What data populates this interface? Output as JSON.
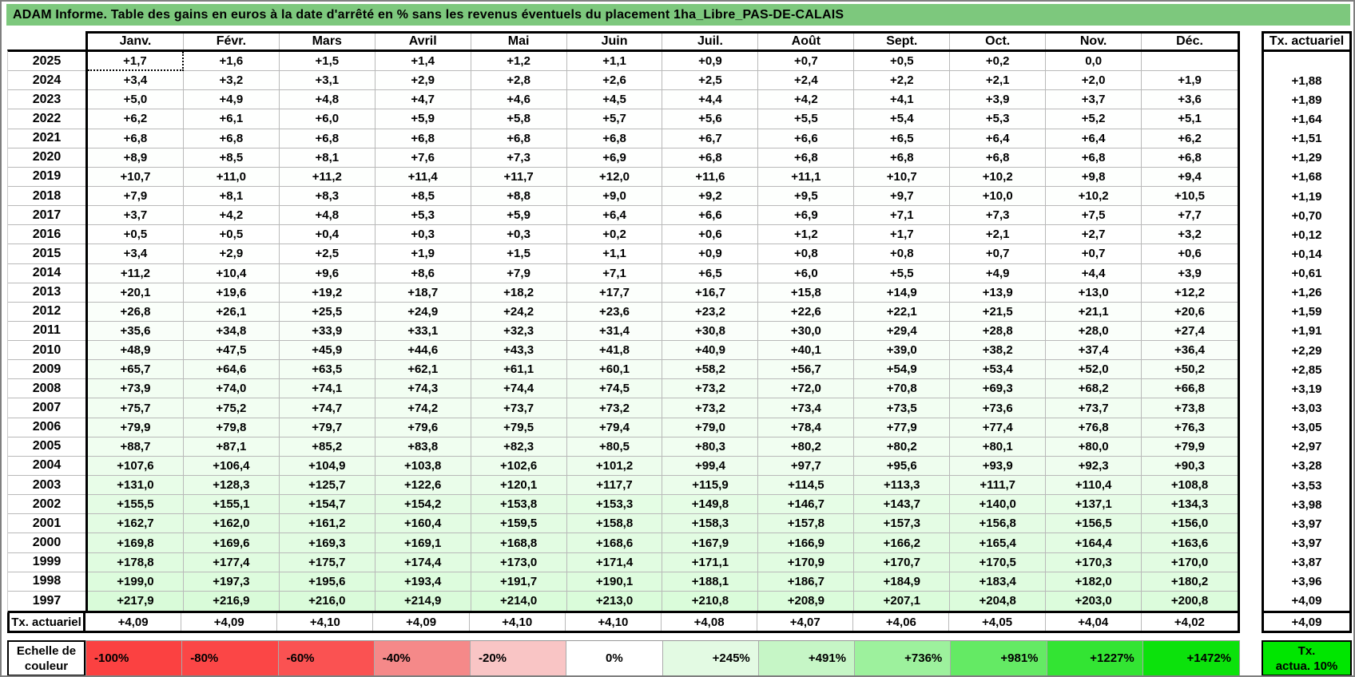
{
  "title": "ADAM Informe. Table des gains en euros à la date d'arrêté en % sans les revenus éventuels du placement 1ha_Libre_PAS-DE-CALAIS",
  "months": [
    "Janv.",
    "Févr.",
    "Mars",
    "Avril",
    "Mai",
    "Juin",
    "Juil.",
    "Août",
    "Sept.",
    "Oct.",
    "Nov.",
    "Déc."
  ],
  "right_column_header": "Tx. actuariel",
  "selection": {
    "row_index": 0,
    "col_index": 0
  },
  "colors": {
    "title_bg": "#7dc87d",
    "grid_line": "#b9b9b9",
    "gradient_max_green": "#00e800",
    "gradient_scale_max": 1472
  },
  "table": {
    "rows": [
      {
        "year": "2025",
        "values": [
          "+1,7",
          "+1,6",
          "+1,5",
          "+1,4",
          "+1,2",
          "+1,1",
          "+0,9",
          "+0,7",
          "+0,5",
          "+0,2",
          "0,0",
          ""
        ],
        "tx": ""
      },
      {
        "year": "2024",
        "values": [
          "+3,4",
          "+3,2",
          "+3,1",
          "+2,9",
          "+2,8",
          "+2,6",
          "+2,5",
          "+2,4",
          "+2,2",
          "+2,1",
          "+2,0",
          "+1,9"
        ],
        "tx": "+1,88"
      },
      {
        "year": "2023",
        "values": [
          "+5,0",
          "+4,9",
          "+4,8",
          "+4,7",
          "+4,6",
          "+4,5",
          "+4,4",
          "+4,2",
          "+4,1",
          "+3,9",
          "+3,7",
          "+3,6"
        ],
        "tx": "+1,89"
      },
      {
        "year": "2022",
        "values": [
          "+6,2",
          "+6,1",
          "+6,0",
          "+5,9",
          "+5,8",
          "+5,7",
          "+5,6",
          "+5,5",
          "+5,4",
          "+5,3",
          "+5,2",
          "+5,1"
        ],
        "tx": "+1,64"
      },
      {
        "year": "2021",
        "values": [
          "+6,8",
          "+6,8",
          "+6,8",
          "+6,8",
          "+6,8",
          "+6,8",
          "+6,7",
          "+6,6",
          "+6,5",
          "+6,4",
          "+6,4",
          "+6,2"
        ],
        "tx": "+1,51"
      },
      {
        "year": "2020",
        "values": [
          "+8,9",
          "+8,5",
          "+8,1",
          "+7,6",
          "+7,3",
          "+6,9",
          "+6,8",
          "+6,8",
          "+6,8",
          "+6,8",
          "+6,8",
          "+6,8"
        ],
        "tx": "+1,29"
      },
      {
        "year": "2019",
        "values": [
          "+10,7",
          "+11,0",
          "+11,2",
          "+11,4",
          "+11,7",
          "+12,0",
          "+11,6",
          "+11,1",
          "+10,7",
          "+10,2",
          "+9,8",
          "+9,4"
        ],
        "tx": "+1,68"
      },
      {
        "year": "2018",
        "values": [
          "+7,9",
          "+8,1",
          "+8,3",
          "+8,5",
          "+8,8",
          "+9,0",
          "+9,2",
          "+9,5",
          "+9,7",
          "+10,0",
          "+10,2",
          "+10,5"
        ],
        "tx": "+1,19"
      },
      {
        "year": "2017",
        "values": [
          "+3,7",
          "+4,2",
          "+4,8",
          "+5,3",
          "+5,9",
          "+6,4",
          "+6,6",
          "+6,9",
          "+7,1",
          "+7,3",
          "+7,5",
          "+7,7"
        ],
        "tx": "+0,70"
      },
      {
        "year": "2016",
        "values": [
          "+0,5",
          "+0,5",
          "+0,4",
          "+0,3",
          "+0,3",
          "+0,2",
          "+0,6",
          "+1,2",
          "+1,7",
          "+2,1",
          "+2,7",
          "+3,2"
        ],
        "tx": "+0,12"
      },
      {
        "year": "2015",
        "values": [
          "+3,4",
          "+2,9",
          "+2,5",
          "+1,9",
          "+1,5",
          "+1,1",
          "+0,9",
          "+0,8",
          "+0,8",
          "+0,7",
          "+0,7",
          "+0,6"
        ],
        "tx": "+0,14"
      },
      {
        "year": "2014",
        "values": [
          "+11,2",
          "+10,4",
          "+9,6",
          "+8,6",
          "+7,9",
          "+7,1",
          "+6,5",
          "+6,0",
          "+5,5",
          "+4,9",
          "+4,4",
          "+3,9"
        ],
        "tx": "+0,61"
      },
      {
        "year": "2013",
        "values": [
          "+20,1",
          "+19,6",
          "+19,2",
          "+18,7",
          "+18,2",
          "+17,7",
          "+16,7",
          "+15,8",
          "+14,9",
          "+13,9",
          "+13,0",
          "+12,2"
        ],
        "tx": "+1,26"
      },
      {
        "year": "2012",
        "values": [
          "+26,8",
          "+26,1",
          "+25,5",
          "+24,9",
          "+24,2",
          "+23,6",
          "+23,2",
          "+22,6",
          "+22,1",
          "+21,5",
          "+21,1",
          "+20,6"
        ],
        "tx": "+1,59"
      },
      {
        "year": "2011",
        "values": [
          "+35,6",
          "+34,8",
          "+33,9",
          "+33,1",
          "+32,3",
          "+31,4",
          "+30,8",
          "+30,0",
          "+29,4",
          "+28,8",
          "+28,0",
          "+27,4"
        ],
        "tx": "+1,91"
      },
      {
        "year": "2010",
        "values": [
          "+48,9",
          "+47,5",
          "+45,9",
          "+44,6",
          "+43,3",
          "+41,8",
          "+40,9",
          "+40,1",
          "+39,0",
          "+38,2",
          "+37,4",
          "+36,4"
        ],
        "tx": "+2,29"
      },
      {
        "year": "2009",
        "values": [
          "+65,7",
          "+64,6",
          "+63,5",
          "+62,1",
          "+61,1",
          "+60,1",
          "+58,2",
          "+56,7",
          "+54,9",
          "+53,4",
          "+52,0",
          "+50,2"
        ],
        "tx": "+2,85"
      },
      {
        "year": "2008",
        "values": [
          "+73,9",
          "+74,0",
          "+74,1",
          "+74,3",
          "+74,4",
          "+74,5",
          "+73,2",
          "+72,0",
          "+70,8",
          "+69,3",
          "+68,2",
          "+66,8"
        ],
        "tx": "+3,19"
      },
      {
        "year": "2007",
        "values": [
          "+75,7",
          "+75,2",
          "+74,7",
          "+74,2",
          "+73,7",
          "+73,2",
          "+73,2",
          "+73,4",
          "+73,5",
          "+73,6",
          "+73,7",
          "+73,8"
        ],
        "tx": "+3,03"
      },
      {
        "year": "2006",
        "values": [
          "+79,9",
          "+79,8",
          "+79,7",
          "+79,6",
          "+79,5",
          "+79,4",
          "+79,0",
          "+78,4",
          "+77,9",
          "+77,4",
          "+76,8",
          "+76,3"
        ],
        "tx": "+3,05"
      },
      {
        "year": "2005",
        "values": [
          "+88,7",
          "+87,1",
          "+85,2",
          "+83,8",
          "+82,3",
          "+80,5",
          "+80,3",
          "+80,2",
          "+80,2",
          "+80,1",
          "+80,0",
          "+79,9"
        ],
        "tx": "+2,97"
      },
      {
        "year": "2004",
        "values": [
          "+107,6",
          "+106,4",
          "+104,9",
          "+103,8",
          "+102,6",
          "+101,2",
          "+99,4",
          "+97,7",
          "+95,6",
          "+93,9",
          "+92,3",
          "+90,3"
        ],
        "tx": "+3,28"
      },
      {
        "year": "2003",
        "values": [
          "+131,0",
          "+128,3",
          "+125,7",
          "+122,6",
          "+120,1",
          "+117,7",
          "+115,9",
          "+114,5",
          "+113,3",
          "+111,7",
          "+110,4",
          "+108,8"
        ],
        "tx": "+3,53"
      },
      {
        "year": "2002",
        "values": [
          "+155,5",
          "+155,1",
          "+154,7",
          "+154,2",
          "+153,8",
          "+153,3",
          "+149,8",
          "+146,7",
          "+143,7",
          "+140,0",
          "+137,1",
          "+134,3"
        ],
        "tx": "+3,98"
      },
      {
        "year": "2001",
        "values": [
          "+162,7",
          "+162,0",
          "+161,2",
          "+160,4",
          "+159,5",
          "+158,8",
          "+158,3",
          "+157,8",
          "+157,3",
          "+156,8",
          "+156,5",
          "+156,0"
        ],
        "tx": "+3,97"
      },
      {
        "year": "2000",
        "values": [
          "+169,8",
          "+169,6",
          "+169,3",
          "+169,1",
          "+168,8",
          "+168,6",
          "+167,9",
          "+166,9",
          "+166,2",
          "+165,4",
          "+164,4",
          "+163,6"
        ],
        "tx": "+3,97"
      },
      {
        "year": "1999",
        "values": [
          "+178,8",
          "+177,4",
          "+175,7",
          "+174,4",
          "+173,0",
          "+171,4",
          "+171,1",
          "+170,9",
          "+170,7",
          "+170,5",
          "+170,3",
          "+170,0"
        ],
        "tx": "+3,87"
      },
      {
        "year": "1998",
        "values": [
          "+199,0",
          "+197,3",
          "+195,6",
          "+193,4",
          "+191,7",
          "+190,1",
          "+188,1",
          "+186,7",
          "+184,9",
          "+183,4",
          "+182,0",
          "+180,2"
        ],
        "tx": "+3,96"
      },
      {
        "year": "1997",
        "values": [
          "+217,9",
          "+216,9",
          "+216,0",
          "+214,9",
          "+214,0",
          "+213,0",
          "+210,8",
          "+208,9",
          "+207,1",
          "+204,8",
          "+203,0",
          "+200,8"
        ],
        "tx": "+4,09"
      }
    ],
    "tx_row": {
      "label": "Tx. actuariel",
      "values": [
        "+4,09",
        "+4,09",
        "+4,10",
        "+4,09",
        "+4,10",
        "+4,10",
        "+4,08",
        "+4,07",
        "+4,06",
        "+4,05",
        "+4,04",
        "+4,02"
      ],
      "right": "+4,09"
    }
  },
  "scale": {
    "label_line1": "Echelle de",
    "label_line2": "couleur",
    "cells": [
      {
        "label": "-100%",
        "color": "#fb4141",
        "align": "left"
      },
      {
        "label": "-80%",
        "color": "#fb4646",
        "align": "left"
      },
      {
        "label": "-60%",
        "color": "#fa5252",
        "align": "left"
      },
      {
        "label": "-40%",
        "color": "#f58989",
        "align": "left"
      },
      {
        "label": "-20%",
        "color": "#f9c5c5",
        "align": "left"
      },
      {
        "label": "0%",
        "color": "#ffffff",
        "align": "center"
      },
      {
        "label": "+245%",
        "color": "#e3fae3",
        "align": "right"
      },
      {
        "label": "+491%",
        "color": "#c6f6c6",
        "align": "right"
      },
      {
        "label": "+736%",
        "color": "#9df19d",
        "align": "right"
      },
      {
        "label": "+981%",
        "color": "#64ea64",
        "align": "right"
      },
      {
        "label": "+1227%",
        "color": "#33e433",
        "align": "right"
      },
      {
        "label": "+1472%",
        "color": "#0ce20c",
        "align": "right"
      }
    ],
    "right_box": {
      "line1": "Tx.",
      "line2": "actua. 10%",
      "color": "#00e600"
    }
  }
}
